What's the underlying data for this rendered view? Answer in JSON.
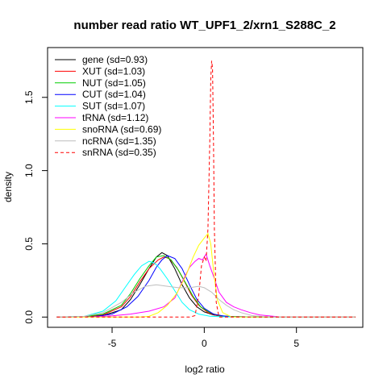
{
  "chart_data": {
    "type": "line",
    "title": "number read ratio WT_UPF1_2/xrn1_S288C_2",
    "xlabel": "log2 ratio",
    "ylabel": "density",
    "xlim": [
      -8.5,
      8.6
    ],
    "ylim": [
      -0.07,
      1.84
    ],
    "x_ticks": [
      -5,
      0,
      5
    ],
    "x_tick_labels": [
      "-5",
      "0",
      "5"
    ],
    "y_ticks": [
      0.0,
      0.5,
      1.0,
      1.5
    ],
    "y_tick_labels": [
      "0.0",
      "0.5",
      "1.0",
      "1.5"
    ],
    "grid": false,
    "legend_position": "top-left",
    "series": [
      {
        "name": "gene (sd=0.93)",
        "color": "#000000",
        "dash": false,
        "x": [
          -8,
          -6.5,
          -5.5,
          -4.5,
          -4,
          -3.5,
          -3,
          -2.6,
          -2.3,
          -2,
          -1.6,
          -1.2,
          -0.8,
          -0.4,
          0,
          0.5,
          1,
          2,
          3,
          8.2
        ],
        "y": [
          0,
          0.002,
          0.01,
          0.05,
          0.12,
          0.22,
          0.33,
          0.41,
          0.44,
          0.42,
          0.33,
          0.22,
          0.13,
          0.07,
          0.035,
          0.015,
          0.005,
          0.002,
          0,
          0
        ]
      },
      {
        "name": "XUT (sd=1.03)",
        "color": "#ff0000",
        "dash": false,
        "x": [
          -8,
          -6.5,
          -5.5,
          -4.5,
          -4,
          -3.5,
          -3,
          -2.5,
          -2.2,
          -1.9,
          -1.5,
          -1.1,
          -0.7,
          -0.3,
          0.2,
          0.7,
          1.5,
          3,
          8.2
        ],
        "y": [
          0,
          0.003,
          0.015,
          0.07,
          0.14,
          0.24,
          0.33,
          0.39,
          0.41,
          0.4,
          0.34,
          0.25,
          0.15,
          0.08,
          0.03,
          0.01,
          0.003,
          0,
          0
        ]
      },
      {
        "name": "NUT (sd=1.05)",
        "color": "#00cd00",
        "dash": false,
        "x": [
          -8,
          -6.5,
          -5.5,
          -4.5,
          -4,
          -3.5,
          -3,
          -2.6,
          -2.2,
          -1.8,
          -1.4,
          -1,
          -0.6,
          -0.2,
          0.3,
          0.8,
          1.5,
          3,
          8.2
        ],
        "y": [
          0,
          0.003,
          0.02,
          0.08,
          0.16,
          0.26,
          0.35,
          0.41,
          0.42,
          0.39,
          0.32,
          0.23,
          0.14,
          0.07,
          0.03,
          0.01,
          0.003,
          0,
          0
        ]
      },
      {
        "name": "CUT (sd=1.04)",
        "color": "#0000ff",
        "dash": false,
        "x": [
          -8,
          -6,
          -5,
          -4.2,
          -3.6,
          -3,
          -2.6,
          -2.3,
          -2,
          -1.6,
          -1.2,
          -0.8,
          -0.4,
          0,
          0.5,
          1,
          1.5,
          3,
          8.2
        ],
        "y": [
          0,
          0.003,
          0.02,
          0.07,
          0.14,
          0.25,
          0.34,
          0.39,
          0.42,
          0.4,
          0.33,
          0.22,
          0.12,
          0.06,
          0.02,
          0.008,
          0.002,
          0,
          0
        ]
      },
      {
        "name": "SUT (sd=1.07)",
        "color": "#00ffff",
        "dash": false,
        "x": [
          -8,
          -6.5,
          -5.5,
          -4.8,
          -4.3,
          -3.8,
          -3.4,
          -3,
          -2.7,
          -2.4,
          -2,
          -1.6,
          -1.2,
          -0.8,
          -0.3,
          0.3,
          1,
          2,
          8.2
        ],
        "y": [
          0,
          0.005,
          0.04,
          0.11,
          0.2,
          0.29,
          0.35,
          0.38,
          0.37,
          0.33,
          0.26,
          0.18,
          0.1,
          0.05,
          0.02,
          0.006,
          0.002,
          0,
          0
        ]
      },
      {
        "name": "tRNA (sd=1.12)",
        "color": "#ff00ff",
        "dash": false,
        "x": [
          -8,
          -6,
          -5,
          -4,
          -3,
          -2.2,
          -1.6,
          -1.2,
          -0.8,
          -0.5,
          -0.3,
          -0.1,
          0.1,
          0.3,
          0.5,
          0.8,
          1.2,
          1.6,
          2,
          2.5,
          3,
          4,
          8.2
        ],
        "y": [
          0,
          0.002,
          0.008,
          0.02,
          0.04,
          0.07,
          0.13,
          0.24,
          0.34,
          0.38,
          0.4,
          0.39,
          0.43,
          0.35,
          0.28,
          0.17,
          0.1,
          0.07,
          0.05,
          0.03,
          0.015,
          0.002,
          0
        ]
      },
      {
        "name": "snoRNA (sd=0.69)",
        "color": "#ffff00",
        "dash": false,
        "x": [
          -8,
          -3.5,
          -3,
          -2.5,
          -2,
          -1.5,
          -1,
          -0.6,
          -0.3,
          0,
          0.2,
          0.35,
          0.5,
          0.7,
          1,
          1.5,
          8.2
        ],
        "y": [
          0,
          0,
          0.005,
          0.03,
          0.08,
          0.16,
          0.28,
          0.41,
          0.49,
          0.54,
          0.57,
          0.5,
          0.32,
          0.12,
          0.03,
          0,
          0
        ]
      },
      {
        "name": "ncRNA (sd=1.35)",
        "color": "#bebebe",
        "dash": false,
        "x": [
          -8,
          -6.5,
          -5.5,
          -4.5,
          -3.8,
          -3.2,
          -2.6,
          -2,
          -1.4,
          -0.8,
          -0.3,
          0,
          0.4,
          0.8,
          1.2,
          1.6,
          2,
          2.6,
          3.2,
          4,
          8.2
        ],
        "y": [
          0,
          0.005,
          0.03,
          0.1,
          0.17,
          0.21,
          0.22,
          0.21,
          0.2,
          0.2,
          0.21,
          0.2,
          0.17,
          0.12,
          0.08,
          0.05,
          0.03,
          0.01,
          0.004,
          0,
          0
        ]
      },
      {
        "name": "snRNA (sd=0.35)",
        "color": "#ff0000",
        "dash": true,
        "x": [
          -8,
          -0.8,
          -0.5,
          -0.3,
          -0.15,
          0,
          0.1,
          0.2,
          0.3,
          0.35,
          0.4,
          0.45,
          0.5,
          0.55,
          0.65,
          0.8,
          8.2
        ],
        "y": [
          0,
          0,
          0.01,
          0.15,
          0.35,
          0.41,
          0.38,
          0.6,
          1.2,
          1.62,
          1.75,
          1.7,
          1.2,
          0.6,
          0.1,
          0,
          0
        ]
      }
    ]
  }
}
